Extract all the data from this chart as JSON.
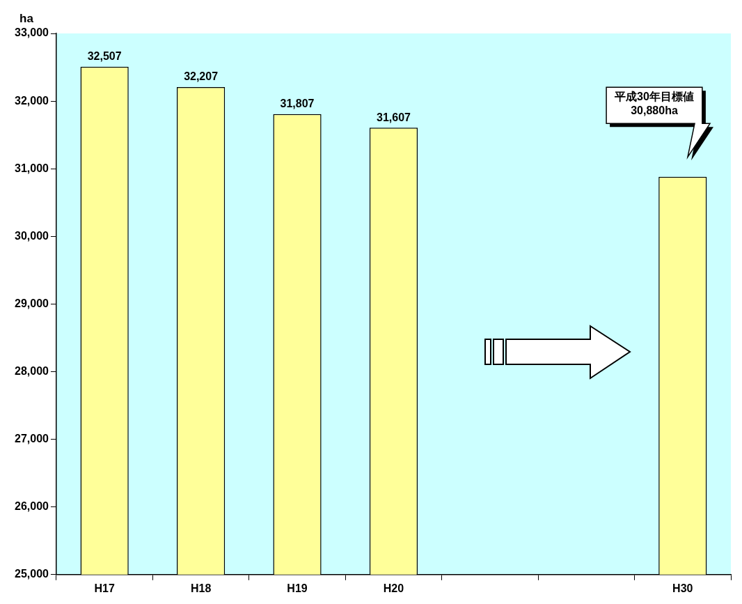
{
  "chart_data": {
    "type": "bar",
    "ylabel": "ha",
    "categories": [
      "H17",
      "H18",
      "H19",
      "H20",
      null,
      null,
      "H30"
    ],
    "values": [
      32507,
      32207,
      31807,
      31607,
      null,
      null,
      30880
    ],
    "color": "#ffff99",
    "value_labels": [
      "32,507",
      "32,207",
      "31,807",
      "31,607",
      null,
      null,
      null
    ],
    "annotations": [
      "平成30年目標値\n30,880ha"
    ],
    "ylim": [
      25000,
      33000
    ],
    "yticks": [
      {
        "value": 25000,
        "label": "25,000"
      },
      {
        "value": 26000,
        "label": "26,000"
      },
      {
        "value": 27000,
        "label": "27,000"
      },
      {
        "value": 28000,
        "label": "28,000"
      },
      {
        "value": 29000,
        "label": "29,000"
      },
      {
        "value": 30000,
        "label": "30,000"
      },
      {
        "value": 31000,
        "label": "31,000"
      },
      {
        "value": 32000,
        "label": "32,000"
      },
      {
        "value": 33000,
        "label": "33,000"
      }
    ],
    "grid": false,
    "legend": false
  }
}
